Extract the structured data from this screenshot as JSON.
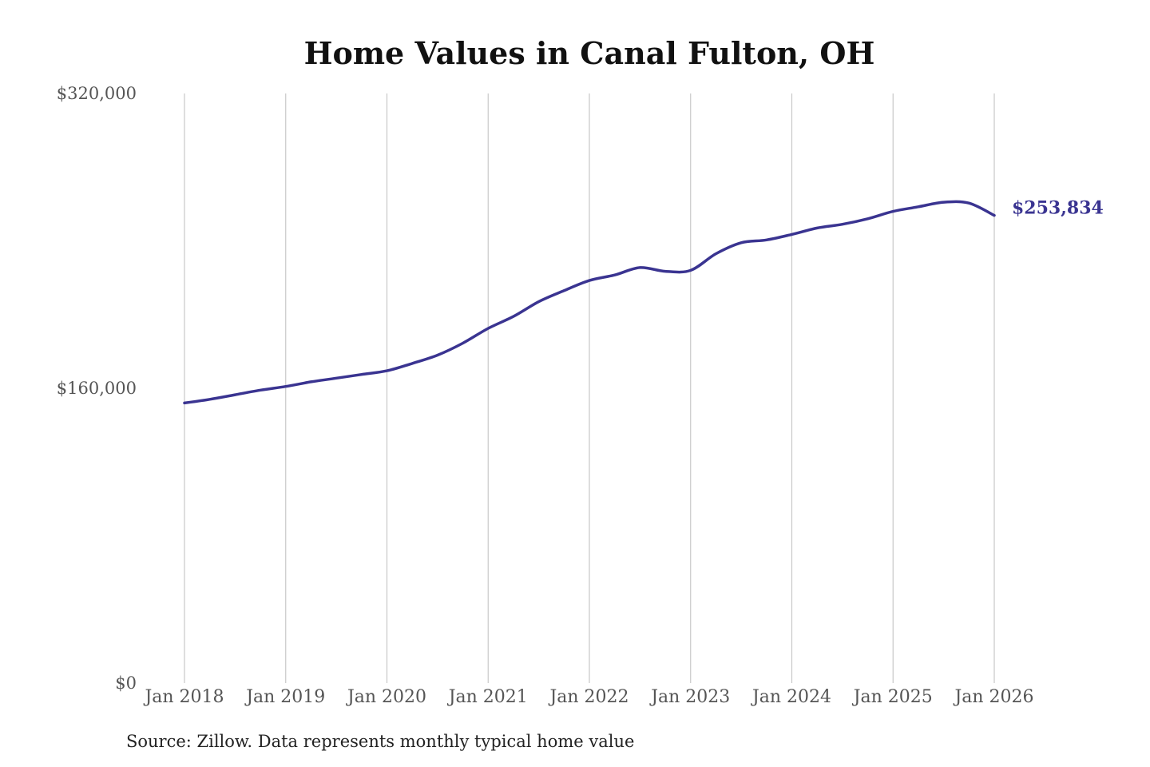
{
  "chart_data": {
    "type": "line",
    "title": "Home Values in Canal Fulton, OH",
    "xlabel": "",
    "ylabel": "",
    "ylim": [
      0,
      320000
    ],
    "yticks": [
      {
        "value": 0,
        "label": "$0"
      },
      {
        "value": 160000,
        "label": "$160,000"
      },
      {
        "value": 320000,
        "label": "$320,000"
      }
    ],
    "xticks": [
      {
        "year": 2018,
        "label": "Jan 2018"
      },
      {
        "year": 2019,
        "label": "Jan 2019"
      },
      {
        "year": 2020,
        "label": "Jan 2020"
      },
      {
        "year": 2021,
        "label": "Jan 2021"
      },
      {
        "year": 2022,
        "label": "Jan 2022"
      },
      {
        "year": 2023,
        "label": "Jan 2023"
      },
      {
        "year": 2024,
        "label": "Jan 2024"
      },
      {
        "year": 2025,
        "label": "Jan 2025"
      },
      {
        "year": 2026,
        "label": "Jan 2026"
      }
    ],
    "xlim": [
      "2018-01",
      "2026-01"
    ],
    "grid": "vertical",
    "legend": "none",
    "line_color": "#3a3491",
    "end_label": "$253,834",
    "series": [
      {
        "x": [
          "2018-01",
          "2018-04",
          "2018-07",
          "2018-10",
          "2019-01",
          "2019-04",
          "2019-07",
          "2019-10",
          "2020-01",
          "2020-04",
          "2020-07",
          "2020-10",
          "2021-01",
          "2021-04",
          "2021-07",
          "2021-10",
          "2022-01",
          "2022-04",
          "2022-07",
          "2022-10",
          "2023-01",
          "2023-04",
          "2023-07",
          "2023-10",
          "2024-01",
          "2024-04",
          "2024-07",
          "2024-10",
          "2025-01",
          "2025-04",
          "2025-07",
          "2025-10",
          "2026-01"
        ],
        "values": [
          152000,
          154000,
          156500,
          159000,
          161000,
          163500,
          165500,
          167500,
          169500,
          173500,
          178000,
          184500,
          192500,
          199000,
          207000,
          213000,
          218500,
          221500,
          225500,
          223500,
          224000,
          233000,
          239000,
          240500,
          243500,
          247000,
          249000,
          252000,
          256000,
          258500,
          261000,
          260500,
          253834
        ]
      }
    ]
  },
  "source_note": "Source: Zillow. Data represents monthly typical home value"
}
